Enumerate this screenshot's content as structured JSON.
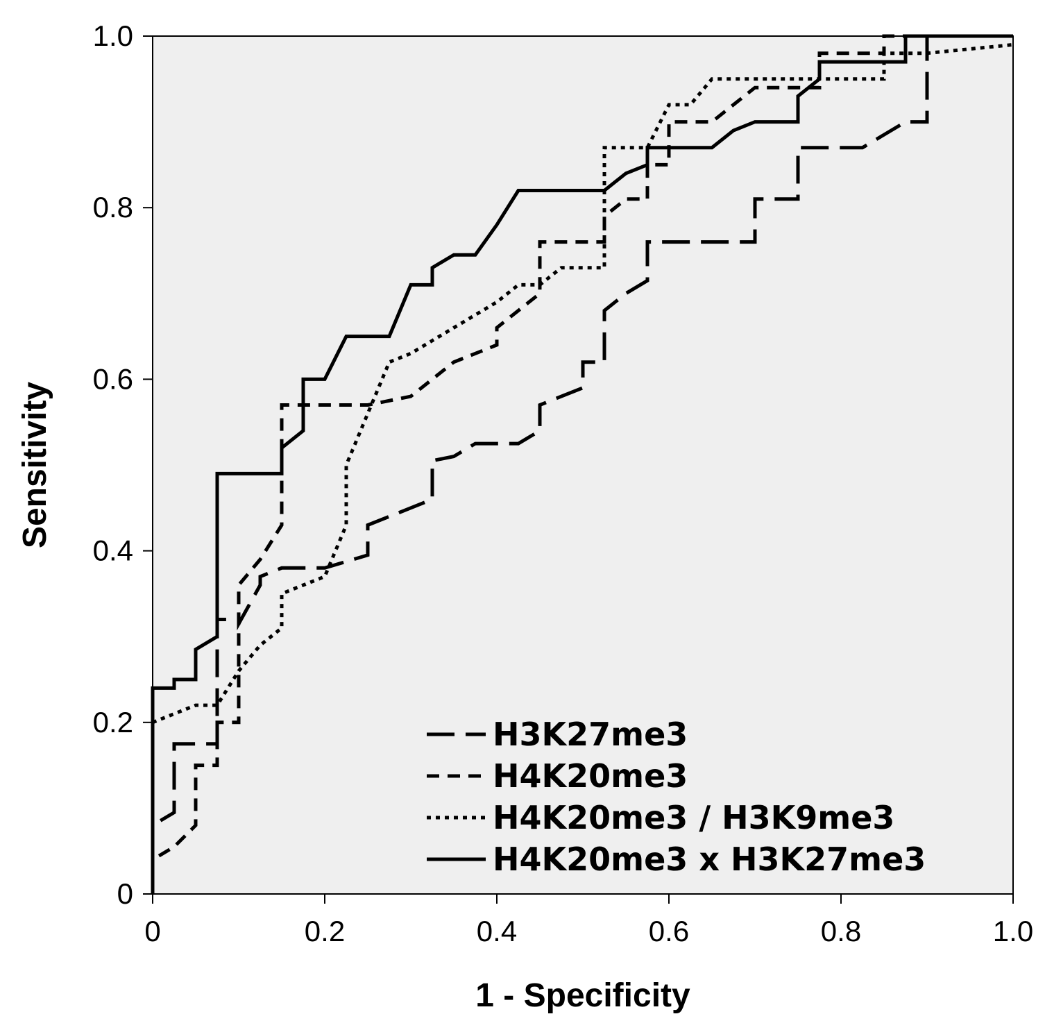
{
  "chart_data": {
    "type": "line",
    "title": "",
    "xlabel": "1 - Specificity",
    "ylabel": "Sensitivity",
    "xlim": [
      0,
      1.0
    ],
    "ylim": [
      0,
      1.0
    ],
    "grid": false,
    "background": "#efefef",
    "legend_position": "bottom-right",
    "x_ticks": [
      0,
      0.2,
      0.4,
      0.6,
      0.8,
      1.0
    ],
    "x_tick_labels": [
      "0",
      "0.2",
      "0.4",
      "0.6",
      "0.8",
      "1.0"
    ],
    "y_ticks": [
      0,
      0.2,
      0.4,
      0.6,
      0.8,
      1.0
    ],
    "y_tick_labels": [
      "0",
      "0.2",
      "0.4",
      "0.6",
      "0.8",
      "1.0"
    ],
    "series": [
      {
        "name": "H3K27me3",
        "style": "long-dash",
        "dash": "40,16",
        "color": "#000000",
        "x": [
          0,
          0,
          0.025,
          0.025,
          0.075,
          0.075,
          0.1,
          0.1,
          0.125,
          0.125,
          0.15,
          0.175,
          0.2,
          0.25,
          0.25,
          0.275,
          0.3,
          0.325,
          0.325,
          0.35,
          0.375,
          0.4,
          0.425,
          0.45,
          0.45,
          0.475,
          0.5,
          0.5,
          0.525,
          0.525,
          0.55,
          0.575,
          0.575,
          0.7,
          0.7,
          0.725,
          0.75,
          0.75,
          0.775,
          0.825,
          0.85,
          0.875,
          0.9,
          0.9,
          1.0
        ],
        "y": [
          0,
          0.08,
          0.095,
          0.175,
          0.175,
          0.32,
          0.32,
          0.315,
          0.36,
          0.37,
          0.38,
          0.38,
          0.38,
          0.395,
          0.43,
          0.44,
          0.45,
          0.46,
          0.505,
          0.51,
          0.525,
          0.525,
          0.525,
          0.54,
          0.57,
          0.58,
          0.59,
          0.62,
          0.62,
          0.68,
          0.7,
          0.715,
          0.76,
          0.76,
          0.81,
          0.81,
          0.81,
          0.87,
          0.87,
          0.87,
          0.885,
          0.9,
          0.9,
          1.0,
          1.0
        ]
      },
      {
        "name": "H4K20me3",
        "style": "short-dash",
        "dash": "18,12",
        "color": "#000000",
        "x": [
          0,
          0,
          0.025,
          0.05,
          0.05,
          0.075,
          0.075,
          0.1,
          0.1,
          0.125,
          0.15,
          0.15,
          0.2,
          0.25,
          0.3,
          0.35,
          0.4,
          0.4,
          0.45,
          0.45,
          0.5,
          0.525,
          0.525,
          0.55,
          0.575,
          0.575,
          0.6,
          0.6,
          0.65,
          0.7,
          0.75,
          0.775,
          0.775,
          0.85,
          0.85,
          0.9,
          1.0
        ],
        "y": [
          0,
          0.04,
          0.055,
          0.08,
          0.15,
          0.15,
          0.2,
          0.2,
          0.36,
          0.39,
          0.43,
          0.57,
          0.57,
          0.57,
          0.58,
          0.62,
          0.64,
          0.66,
          0.7,
          0.76,
          0.76,
          0.76,
          0.79,
          0.81,
          0.81,
          0.85,
          0.85,
          0.9,
          0.9,
          0.94,
          0.94,
          0.94,
          0.98,
          0.98,
          1.0,
          1.0,
          1.0
        ]
      },
      {
        "name": "H4K20me3 / H3K9me3",
        "style": "dotted",
        "dash": "6,7",
        "color": "#000000",
        "x": [
          0,
          0,
          0.05,
          0.075,
          0.1,
          0.125,
          0.15,
          0.15,
          0.175,
          0.2,
          0.225,
          0.225,
          0.25,
          0.275,
          0.3,
          0.35,
          0.4,
          0.425,
          0.45,
          0.475,
          0.5,
          0.525,
          0.525,
          0.575,
          0.6,
          0.625,
          0.65,
          0.7,
          0.85,
          0.85,
          0.9,
          1.0
        ],
        "y": [
          0,
          0.2,
          0.22,
          0.22,
          0.26,
          0.29,
          0.31,
          0.35,
          0.36,
          0.37,
          0.43,
          0.5,
          0.56,
          0.62,
          0.63,
          0.66,
          0.69,
          0.71,
          0.71,
          0.73,
          0.73,
          0.73,
          0.87,
          0.87,
          0.92,
          0.92,
          0.95,
          0.95,
          0.95,
          0.98,
          0.98,
          0.99
        ]
      },
      {
        "name": "H4K20me3 x H3K27me3",
        "style": "solid",
        "dash": "",
        "color": "#000000",
        "x": [
          0,
          0,
          0.025,
          0.025,
          0.05,
          0.05,
          0.075,
          0.075,
          0.15,
          0.15,
          0.175,
          0.175,
          0.2,
          0.225,
          0.275,
          0.3,
          0.325,
          0.325,
          0.35,
          0.375,
          0.4,
          0.425,
          0.45,
          0.525,
          0.55,
          0.575,
          0.575,
          0.65,
          0.675,
          0.7,
          0.75,
          0.75,
          0.775,
          0.775,
          0.85,
          0.875,
          0.875,
          1.0
        ],
        "y": [
          0,
          0.24,
          0.24,
          0.25,
          0.25,
          0.285,
          0.3,
          0.49,
          0.49,
          0.52,
          0.54,
          0.6,
          0.6,
          0.65,
          0.65,
          0.71,
          0.71,
          0.73,
          0.745,
          0.745,
          0.78,
          0.82,
          0.82,
          0.82,
          0.84,
          0.85,
          0.87,
          0.87,
          0.89,
          0.9,
          0.9,
          0.93,
          0.95,
          0.97,
          0.97,
          0.97,
          1.0,
          1.0
        ]
      }
    ]
  }
}
